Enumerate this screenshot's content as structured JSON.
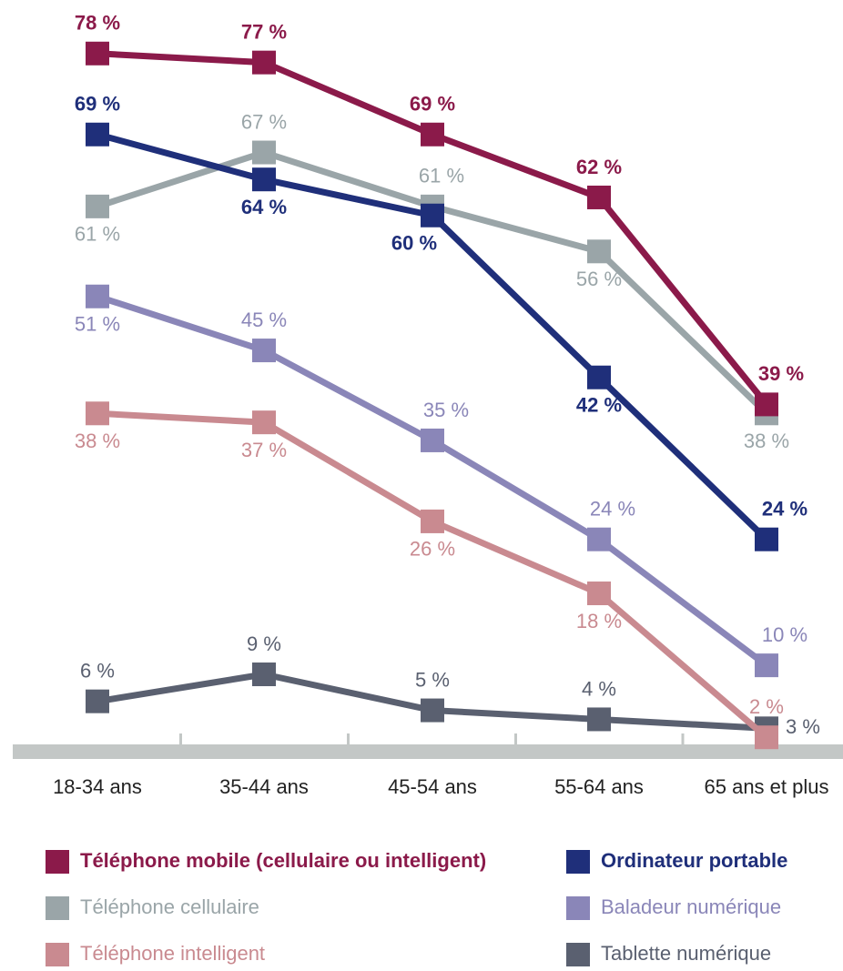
{
  "chart_data": {
    "type": "line",
    "categories": [
      "18-34 ans",
      "35-44 ans",
      "45-54 ans",
      "55-64 ans",
      "65 ans et plus"
    ],
    "ylim": [
      0,
      80
    ],
    "series": [
      {
        "name": "Téléphone mobile (cellulaire ou intelligent)",
        "color": "#8b1a4a",
        "values": [
          78,
          77,
          69,
          62,
          39
        ],
        "value_labels": [
          "78 %",
          "77 %",
          "69 %",
          "62 %",
          "39 %"
        ]
      },
      {
        "name": "Ordinateur portable",
        "color": "#1f2f7a",
        "values": [
          69,
          64,
          60,
          42,
          24
        ],
        "value_labels": [
          "69 %",
          "64 %",
          "60 %",
          "42 %",
          "24 %"
        ]
      },
      {
        "name": "Téléphone cellulaire",
        "color": "#9aa5a8",
        "values": [
          61,
          67,
          61,
          56,
          38
        ],
        "value_labels": [
          "61 %",
          "67 %",
          "61 %",
          "56 %",
          "38 %"
        ]
      },
      {
        "name": "Baladeur numérique",
        "color": "#8a86b8",
        "values": [
          51,
          45,
          35,
          24,
          10
        ],
        "value_labels": [
          "51 %",
          "45 %",
          "35 %",
          "24 %",
          "10 %"
        ]
      },
      {
        "name": "Téléphone intelligent",
        "color": "#c98a90",
        "values": [
          38,
          37,
          26,
          18,
          2
        ],
        "value_labels": [
          "38 %",
          "37 %",
          "26 %",
          "18 %",
          "2 %"
        ]
      },
      {
        "name": "Tablette numérique",
        "color": "#5a6070",
        "values": [
          6,
          9,
          5,
          4,
          3
        ],
        "value_labels": [
          "6 %",
          "9 %",
          "5 %",
          "4 %",
          "3 %"
        ]
      }
    ]
  }
}
